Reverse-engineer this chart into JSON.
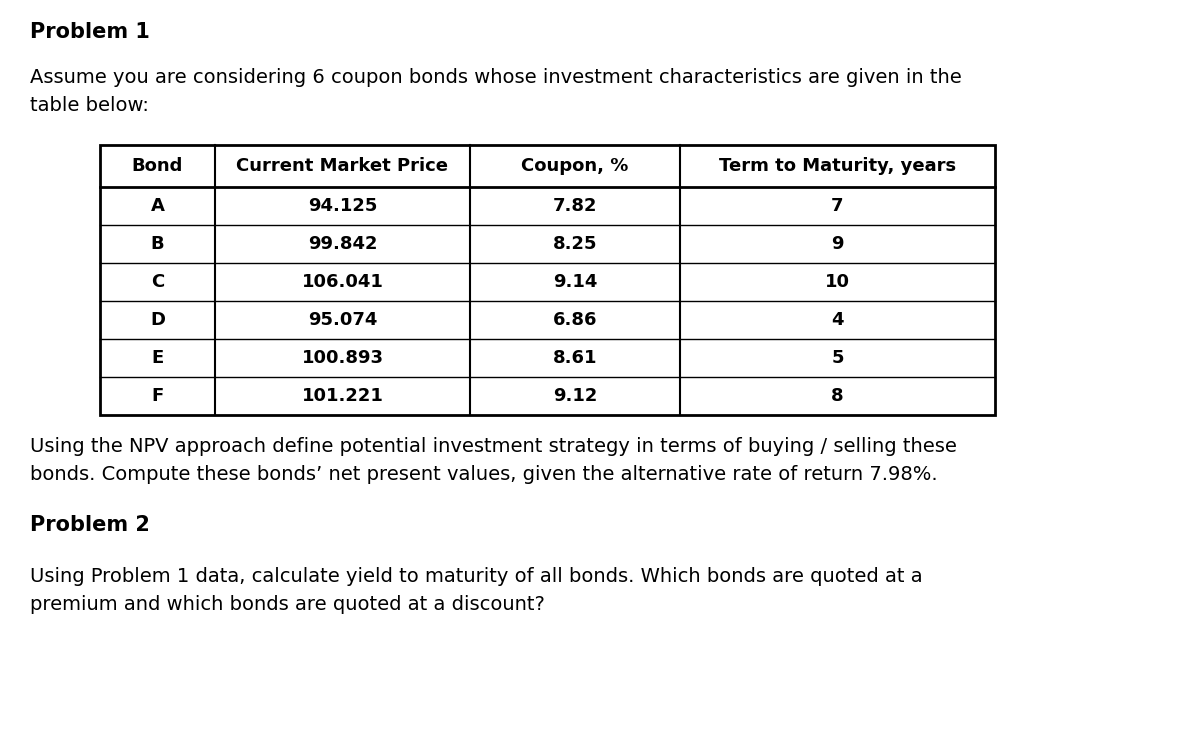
{
  "title1": "Problem 1",
  "para1_line1": "Assume you are considering 6 coupon bonds whose investment characteristics are given in the",
  "para1_line2": "table below:",
  "table_headers": [
    "Bond",
    "Current Market Price",
    "Coupon, %",
    "Term to Maturity, years"
  ],
  "table_rows": [
    [
      "A",
      "94.125",
      "7.82",
      "7"
    ],
    [
      "B",
      "99.842",
      "8.25",
      "9"
    ],
    [
      "C",
      "106.041",
      "9.14",
      "10"
    ],
    [
      "D",
      "95.074",
      "6.86",
      "4"
    ],
    [
      "E",
      "100.893",
      "8.61",
      "5"
    ],
    [
      "F",
      "101.221",
      "9.12",
      "8"
    ]
  ],
  "para2_line1": "Using the NPV approach define potential investment strategy in terms of buying / selling these",
  "para2_line2": "bonds. Compute these bonds’ net present values, given the alternative rate of return 7.98%.",
  "title2": "Problem 2",
  "para3_line1": "Using Problem 1 data, calculate yield to maturity of all bonds. Which bonds are quoted at a",
  "para3_line2": "premium and which bonds are quoted at a discount?",
  "bg_color": "#ffffff",
  "text_color": "#000000",
  "fs_title": 15,
  "fs_body": 14,
  "fs_table_header": 13,
  "fs_table_body": 13
}
